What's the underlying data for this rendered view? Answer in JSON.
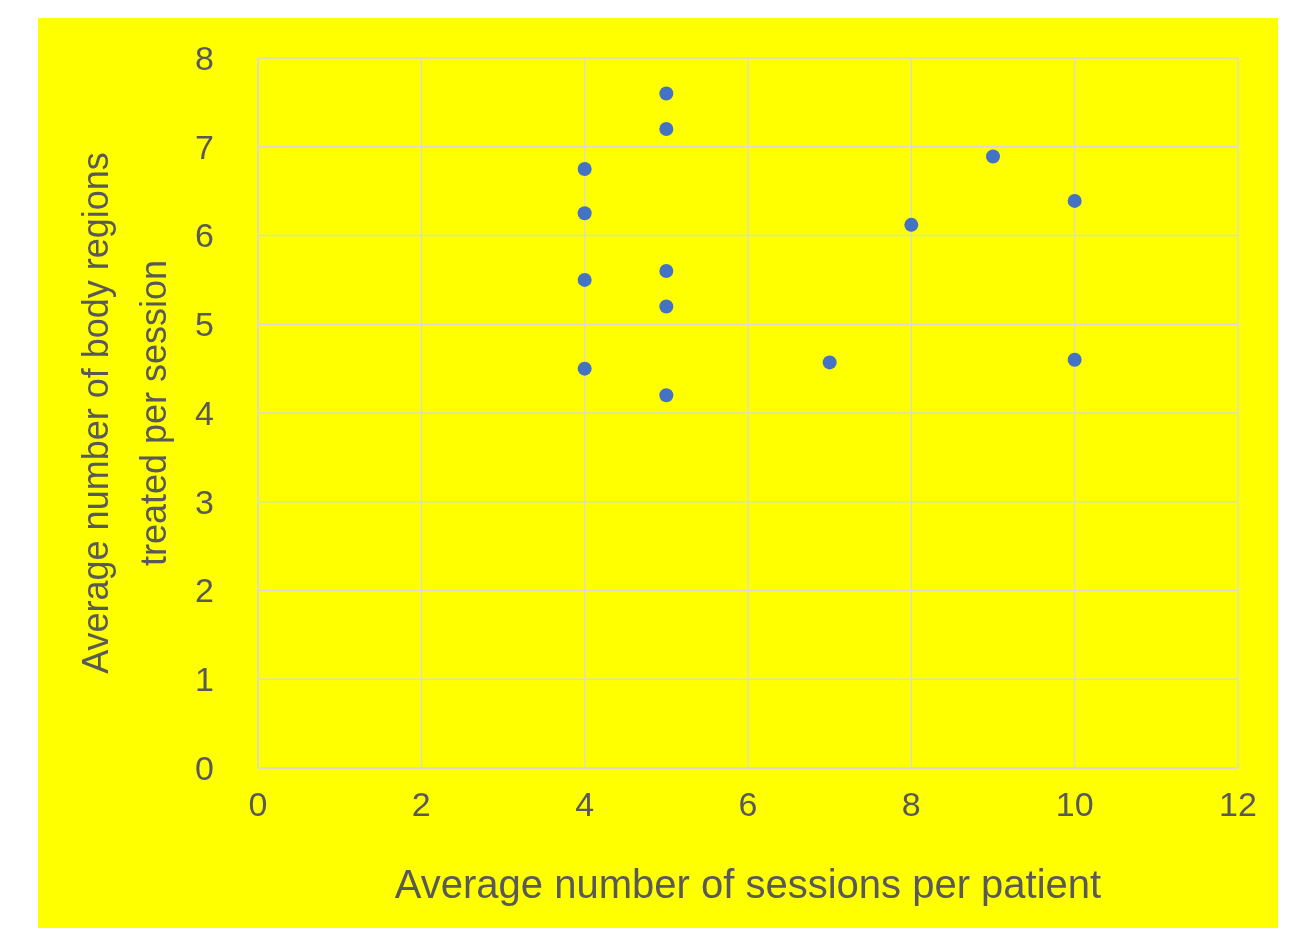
{
  "chart_data": {
    "type": "scatter",
    "xlabel": "Average number of sessions per patient",
    "ylabel": "Average number of body regions treated per session",
    "x": [
      4,
      4,
      4,
      4,
      5,
      5,
      5,
      5,
      5,
      7,
      8,
      9,
      10,
      10
    ],
    "series": [
      {
        "color": "#4472c4",
        "values": [
          6.75,
          6.25,
          5.5,
          4.5,
          7.6,
          7.2,
          5.6,
          5.2,
          4.2,
          4.57,
          6.12,
          6.89,
          6.39,
          4.6
        ]
      }
    ],
    "xlim": [
      0,
      12
    ],
    "xticks": [
      0,
      2,
      4,
      6,
      8,
      10,
      12
    ],
    "ylim": [
      0,
      8
    ],
    "yticks": [
      0,
      1,
      2,
      3,
      4,
      5,
      6,
      7,
      8
    ],
    "grid": true,
    "marker": "circle"
  }
}
